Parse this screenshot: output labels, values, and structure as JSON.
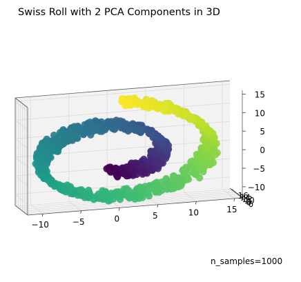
{
  "chart_data": {
    "type": "scatter",
    "projection": "3d",
    "title": "Swiss Roll with 2 PCA Components in 3D",
    "annotation": "n_samples=1000",
    "n_samples": 1000,
    "colormap": "viridis",
    "marker_color": "viridis colormap by roll position",
    "x_axis": {
      "lim": [
        -12,
        16
      ],
      "ticks": [
        -10,
        -5,
        0,
        5,
        10,
        15
      ]
    },
    "y_axis": {
      "lim": [
        5,
        17
      ],
      "ticks": [
        6,
        8,
        10,
        12,
        14,
        16
      ]
    },
    "z_axis": {
      "lim": [
        -13,
        16
      ],
      "ticks": [
        -10,
        -5,
        0,
        5,
        10,
        15
      ]
    },
    "grid": true,
    "pane_color": "#f2f2f2",
    "roll": {
      "t_range": [
        4.7,
        14.1
      ],
      "height_range": [
        5,
        17
      ]
    }
  }
}
